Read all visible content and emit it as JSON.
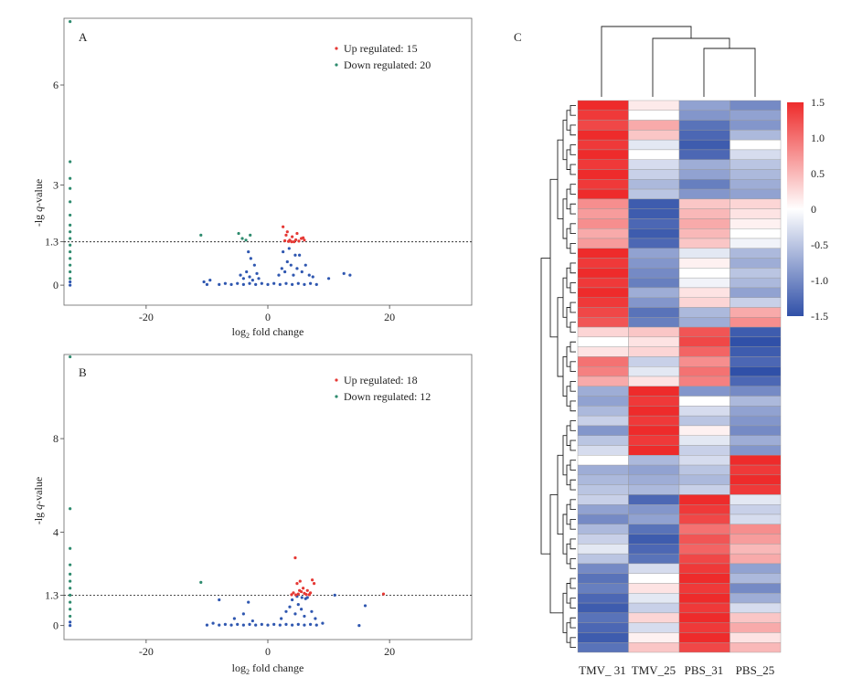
{
  "colors": {
    "up": "#e53935",
    "down": "#2e8b6e",
    "neutral": "#2f57b0",
    "frame": "#555555",
    "heat_high": "#ee2b2b",
    "heat_mid": "#ffffff",
    "heat_low": "#3050a8"
  },
  "chart_data": [
    {
      "type": "scatter",
      "panel_label": "A",
      "xlabel": "log2 fold change",
      "xlabel_parts": {
        "pre": "log",
        "sub": "2",
        "post": " fold change"
      },
      "ylabel": "-lg q-value",
      "ylabel_parts": {
        "pre": "-lg ",
        "ital": "q",
        "post": "-value"
      },
      "xlim": [
        -33.5,
        33.5
      ],
      "ylim": [
        -0.6,
        8.0
      ],
      "xticks": [
        -20,
        0,
        20
      ],
      "xtick_labels": [
        "-20",
        "0",
        "20"
      ],
      "yticks": [
        0,
        1.3,
        3,
        6
      ],
      "ytick_labels": [
        "0",
        "1.3",
        "3",
        "6"
      ],
      "threshold": 1.3,
      "legend": [
        {
          "key": "up",
          "label": "Up regulated: 15"
        },
        {
          "key": "down",
          "label": "Down regulated: 20"
        }
      ],
      "series": [
        {
          "key": "up",
          "points": [
            [
              2.5,
              1.75
            ],
            [
              3.2,
              1.6
            ],
            [
              3.6,
              1.35
            ],
            [
              4.0,
              1.45
            ],
            [
              4.8,
              1.55
            ],
            [
              5.5,
              1.4
            ],
            [
              6.0,
              1.35
            ],
            [
              3.0,
              1.5
            ],
            [
              4.3,
              1.3
            ],
            [
              5.1,
              1.32
            ],
            [
              2.8,
              1.33
            ],
            [
              3.9,
              1.3
            ],
            [
              4.6,
              1.36
            ],
            [
              5.8,
              1.42
            ],
            [
              3.4,
              1.31
            ]
          ]
        },
        {
          "key": "down",
          "points": [
            [
              -32.5,
              7.9
            ],
            [
              -32.5,
              3.7
            ],
            [
              -32.5,
              3.2
            ],
            [
              -32.5,
              2.9
            ],
            [
              -32.5,
              2.5
            ],
            [
              -32.5,
              2.1
            ],
            [
              -32.5,
              1.8
            ],
            [
              -32.5,
              1.6
            ],
            [
              -32.5,
              1.4
            ],
            [
              -32.5,
              1.2
            ],
            [
              -32.5,
              1.0
            ],
            [
              -32.5,
              0.8
            ],
            [
              -32.5,
              0.6
            ],
            [
              -32.5,
              0.4
            ],
            [
              -32.5,
              0.2
            ],
            [
              -11,
              1.5
            ],
            [
              -4.8,
              1.55
            ],
            [
              -4.2,
              1.4
            ],
            [
              -3.6,
              1.35
            ],
            [
              -2.9,
              1.5
            ]
          ]
        },
        {
          "key": "neutral",
          "points": [
            [
              -10,
              0.02
            ],
            [
              -8,
              0.02
            ],
            [
              -6,
              0.02
            ],
            [
              -4,
              0.02
            ],
            [
              -2,
              0.02
            ],
            [
              0,
              0.02
            ],
            [
              2,
              0.02
            ],
            [
              4,
              0.02
            ],
            [
              6,
              0.02
            ],
            [
              8,
              0.02
            ],
            [
              -7,
              0.05
            ],
            [
              -5,
              0.05
            ],
            [
              -3,
              0.05
            ],
            [
              -1,
              0.05
            ],
            [
              1,
              0.05
            ],
            [
              3,
              0.05
            ],
            [
              5,
              0.05
            ],
            [
              7,
              0.05
            ],
            [
              -4.5,
              0.3
            ],
            [
              -4,
              0.2
            ],
            [
              -3.5,
              0.4
            ],
            [
              -3,
              0.25
            ],
            [
              -2.5,
              0.15
            ],
            [
              -2.2,
              0.6
            ],
            [
              -1.8,
              0.35
            ],
            [
              -2.8,
              0.8
            ],
            [
              -3.2,
              1.0
            ],
            [
              -1.5,
              0.2
            ],
            [
              1.8,
              0.3
            ],
            [
              2.3,
              0.5
            ],
            [
              2.8,
              0.4
            ],
            [
              3.2,
              0.7
            ],
            [
              3.8,
              0.6
            ],
            [
              4.2,
              0.3
            ],
            [
              4.8,
              0.5
            ],
            [
              5.2,
              0.9
            ],
            [
              5.6,
              0.4
            ],
            [
              6.2,
              0.6
            ],
            [
              6.8,
              0.3
            ],
            [
              7.4,
              0.25
            ],
            [
              2.5,
              1.0
            ],
            [
              3.5,
              1.1
            ],
            [
              4.5,
              0.9
            ],
            [
              -32.5,
              0.1
            ],
            [
              -32.5,
              0.0
            ],
            [
              10,
              0.2
            ],
            [
              12.5,
              0.35
            ],
            [
              13.5,
              0.3
            ],
            [
              -10.5,
              0.1
            ],
            [
              -9.5,
              0.15
            ]
          ]
        }
      ]
    },
    {
      "type": "scatter",
      "panel_label": "B",
      "xlabel": "log2 fold change",
      "xlabel_parts": {
        "pre": "log",
        "sub": "2",
        "post": " fold change"
      },
      "ylabel": "-lg q-value",
      "ylabel_parts": {
        "pre": "-lg ",
        "ital": "q",
        "post": "-value"
      },
      "xlim": [
        -33.5,
        33.5
      ],
      "ylim": [
        -0.6,
        11.6
      ],
      "xticks": [
        -20,
        0,
        20
      ],
      "xtick_labels": [
        "-20",
        "0",
        "20"
      ],
      "yticks": [
        0,
        1.3,
        4,
        8
      ],
      "ytick_labels": [
        "0",
        "1.3",
        "4",
        "8"
      ],
      "threshold": 1.3,
      "legend": [
        {
          "key": "up",
          "label": "Up regulated: 18"
        },
        {
          "key": "down",
          "label": "Down regulated: 12"
        }
      ],
      "series": [
        {
          "key": "up",
          "points": [
            [
              4.5,
              2.9
            ],
            [
              4.8,
              1.8
            ],
            [
              5.3,
              1.9
            ],
            [
              5.8,
              1.6
            ],
            [
              6.5,
              1.5
            ],
            [
              7.3,
              1.95
            ],
            [
              7.6,
              1.8
            ],
            [
              4.2,
              1.4
            ],
            [
              5.0,
              1.35
            ],
            [
              5.5,
              1.45
            ],
            [
              6.0,
              1.38
            ],
            [
              6.8,
              1.32
            ],
            [
              4.6,
              1.31
            ],
            [
              5.2,
              1.5
            ],
            [
              6.3,
              1.33
            ],
            [
              7.0,
              1.4
            ],
            [
              19.0,
              1.35
            ],
            [
              3.9,
              1.32
            ]
          ]
        },
        {
          "key": "down",
          "points": [
            [
              -32.5,
              11.5
            ],
            [
              -32.5,
              5.0
            ],
            [
              -32.5,
              3.3
            ],
            [
              -32.5,
              2.6
            ],
            [
              -32.5,
              2.2
            ],
            [
              -32.5,
              1.9
            ],
            [
              -32.5,
              1.6
            ],
            [
              -32.5,
              1.3
            ],
            [
              -32.5,
              1.0
            ],
            [
              -32.5,
              0.7
            ],
            [
              -11,
              1.85
            ],
            [
              -32.5,
              0.4
            ]
          ]
        },
        {
          "key": "neutral",
          "points": [
            [
              -10,
              0.02
            ],
            [
              -8,
              0.02
            ],
            [
              -6,
              0.02
            ],
            [
              -4,
              0.02
            ],
            [
              -2,
              0.02
            ],
            [
              0,
              0.02
            ],
            [
              2,
              0.02
            ],
            [
              4,
              0.02
            ],
            [
              6,
              0.02
            ],
            [
              8,
              0.02
            ],
            [
              -7,
              0.05
            ],
            [
              -5,
              0.05
            ],
            [
              -3,
              0.05
            ],
            [
              -1,
              0.05
            ],
            [
              1,
              0.05
            ],
            [
              3,
              0.05
            ],
            [
              5,
              0.05
            ],
            [
              7,
              0.05
            ],
            [
              -8,
              1.1
            ],
            [
              -3.2,
              1.0
            ],
            [
              -4,
              0.5
            ],
            [
              -5.5,
              0.3
            ],
            [
              -2.5,
              0.2
            ],
            [
              2.2,
              0.3
            ],
            [
              3,
              0.6
            ],
            [
              3.6,
              0.8
            ],
            [
              4,
              1.1
            ],
            [
              4.5,
              0.5
            ],
            [
              5.0,
              0.9
            ],
            [
              5.5,
              0.7
            ],
            [
              6,
              0.4
            ],
            [
              6.5,
              1.2
            ],
            [
              7.2,
              0.6
            ],
            [
              7.8,
              0.3
            ],
            [
              4.8,
              1.25
            ],
            [
              5.6,
              1.2
            ],
            [
              6.2,
              1.15
            ],
            [
              15,
              0.0
            ],
            [
              16,
              0.85
            ],
            [
              11,
              1.3
            ],
            [
              -32.5,
              0.15
            ],
            [
              -32.5,
              0.0
            ],
            [
              9,
              0.1
            ],
            [
              -9,
              0.1
            ]
          ]
        }
      ]
    },
    {
      "type": "heatmap",
      "panel_label": "C",
      "columns": [
        "TMV_ 31",
        "TMV_25",
        "PBS_31",
        "PBS_25"
      ],
      "color_scale": {
        "min": -1.5,
        "max": 1.5
      },
      "colorbar_ticks": [
        1.5,
        1.0,
        0.5,
        0,
        -0.5,
        -1.0,
        -1.5
      ],
      "colorbar_labels": [
        "1.5",
        "1.0",
        "0.5",
        "0",
        "-0.5",
        "-1.0",
        "-1.5"
      ],
      "rows": [
        [
          1.5,
          0.15,
          -0.8,
          -1.0
        ],
        [
          1.4,
          0.0,
          -0.9,
          -0.8
        ],
        [
          1.3,
          0.6,
          -1.2,
          -0.9
        ],
        [
          1.5,
          0.4,
          -1.3,
          -0.6
        ],
        [
          1.4,
          -0.2,
          -1.4,
          0.0
        ],
        [
          1.5,
          0.0,
          -1.3,
          -0.3
        ],
        [
          1.4,
          -0.3,
          -0.7,
          -0.5
        ],
        [
          1.5,
          -0.4,
          -0.8,
          -0.6
        ],
        [
          1.4,
          -0.6,
          -1.1,
          -0.7
        ],
        [
          1.5,
          -0.5,
          -0.9,
          -0.8
        ],
        [
          0.8,
          -1.4,
          0.4,
          0.3
        ],
        [
          0.7,
          -1.4,
          0.5,
          0.2
        ],
        [
          0.8,
          -1.3,
          0.6,
          0.1
        ],
        [
          0.6,
          -1.4,
          0.5,
          0.0
        ],
        [
          0.7,
          -1.3,
          0.4,
          -0.1
        ],
        [
          1.5,
          -0.8,
          -0.2,
          -0.6
        ],
        [
          1.4,
          -0.9,
          0.1,
          -0.7
        ],
        [
          1.5,
          -1.0,
          0.0,
          -0.5
        ],
        [
          1.4,
          -1.1,
          -0.1,
          -0.6
        ],
        [
          1.5,
          -0.7,
          0.2,
          -0.8
        ],
        [
          1.4,
          -0.9,
          0.3,
          -0.4
        ],
        [
          1.3,
          -1.2,
          -0.6,
          0.6
        ],
        [
          1.2,
          -1.1,
          -0.7,
          0.8
        ],
        [
          0.3,
          0.4,
          1.2,
          -1.4
        ],
        [
          0.0,
          0.2,
          1.3,
          -1.5
        ],
        [
          0.2,
          0.3,
          1.1,
          -1.4
        ],
        [
          1.0,
          -0.4,
          0.8,
          -1.3
        ],
        [
          0.9,
          -0.2,
          1.0,
          -1.5
        ],
        [
          0.6,
          0.2,
          0.9,
          -1.3
        ],
        [
          -0.7,
          1.5,
          -0.9,
          -1.0
        ],
        [
          -0.8,
          1.4,
          0.0,
          -0.6
        ],
        [
          -0.6,
          1.5,
          -0.3,
          -0.8
        ],
        [
          -0.4,
          1.4,
          -0.5,
          -0.9
        ],
        [
          -0.9,
          1.5,
          0.1,
          -1.0
        ],
        [
          -0.5,
          1.4,
          -0.2,
          -0.7
        ],
        [
          -0.3,
          1.5,
          -0.4,
          -0.9
        ],
        [
          0.0,
          -0.6,
          -0.3,
          1.5
        ],
        [
          -0.7,
          -0.8,
          -0.5,
          1.4
        ],
        [
          -0.6,
          -0.7,
          -0.6,
          1.5
        ],
        [
          -0.5,
          -0.6,
          -0.4,
          1.4
        ],
        [
          -0.4,
          -1.3,
          1.5,
          -0.2
        ],
        [
          -0.8,
          -0.9,
          1.4,
          -0.4
        ],
        [
          -1.0,
          -0.8,
          1.3,
          -0.3
        ],
        [
          -0.6,
          -1.2,
          1.0,
          0.8
        ],
        [
          -0.4,
          -1.4,
          1.2,
          0.7
        ],
        [
          -0.2,
          -1.3,
          1.1,
          0.5
        ],
        [
          -0.5,
          -1.2,
          1.3,
          0.6
        ],
        [
          -1.0,
          -0.3,
          1.4,
          -0.8
        ],
        [
          -1.2,
          0.0,
          1.5,
          -0.6
        ],
        [
          -1.1,
          0.2,
          1.4,
          -1.0
        ],
        [
          -1.3,
          -0.2,
          1.5,
          -0.7
        ],
        [
          -1.4,
          -0.4,
          1.4,
          -0.3
        ],
        [
          -1.2,
          0.3,
          1.5,
          0.4
        ],
        [
          -1.3,
          -0.3,
          1.4,
          0.6
        ],
        [
          -1.4,
          0.1,
          1.5,
          0.2
        ],
        [
          -1.2,
          0.4,
          1.3,
          0.5
        ]
      ],
      "row_order": "clustered",
      "col_tree": "TMV_31 | (TMV_25 | (PBS_31, PBS_25))"
    }
  ]
}
